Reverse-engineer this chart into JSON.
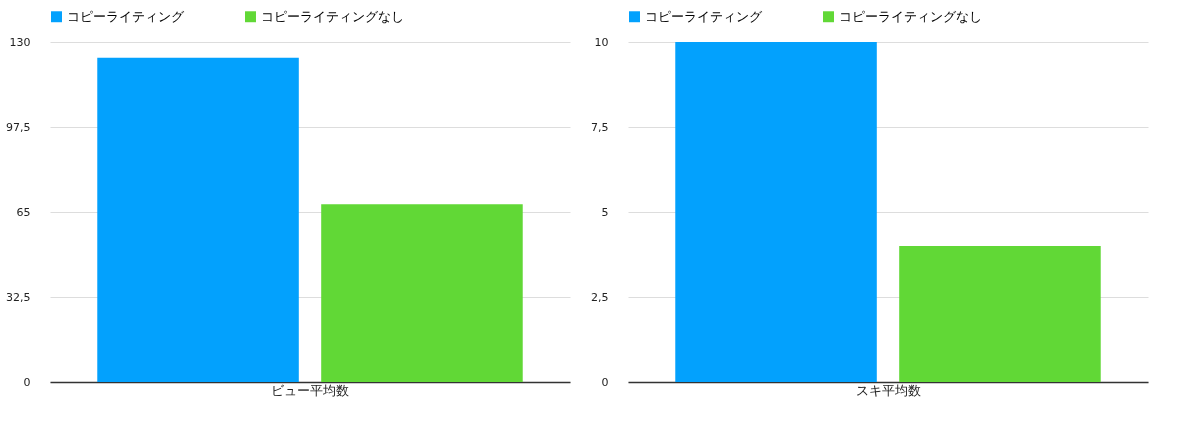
{
  "chart_data": [
    {
      "type": "bar",
      "categories": [
        "ビュー平均数"
      ],
      "series": [
        {
          "name": "コピーライティング",
          "color": "#03a1fd",
          "values": [
            124
          ]
        },
        {
          "name": "コピーライティングなし",
          "color": "#61d836",
          "values": [
            68
          ]
        }
      ],
      "ylim": [
        0,
        130
      ],
      "yticks": [
        0,
        {
          "value": 32.5,
          "label": "32,5"
        },
        65,
        {
          "value": 97.5,
          "label": "97,5"
        },
        130
      ],
      "grid": "y",
      "legend": "top"
    },
    {
      "type": "bar",
      "categories": [
        "スキ平均数"
      ],
      "series": [
        {
          "name": "コピーライティング",
          "color": "#03a1fd",
          "values": [
            10
          ]
        },
        {
          "name": "コピーライティングなし",
          "color": "#61d836",
          "values": [
            4
          ]
        }
      ],
      "ylim": [
        0,
        10
      ],
      "yticks": [
        0,
        {
          "value": 2.5,
          "label": "2,5"
        },
        5,
        {
          "value": 7.5,
          "label": "7,5"
        },
        10
      ],
      "grid": "y",
      "legend": "top"
    }
  ]
}
